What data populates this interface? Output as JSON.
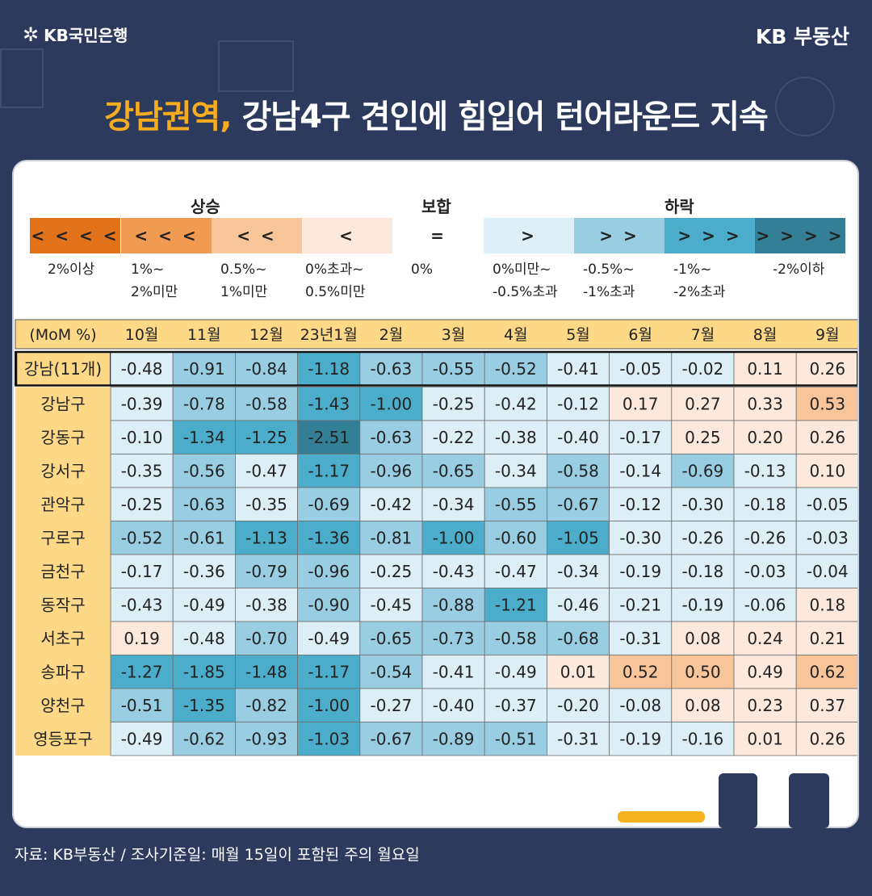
{
  "header": {
    "bank_logo": "KB국민은행",
    "brand": "KB 부동산"
  },
  "title": {
    "highlight": "강남권역,",
    "rest": " 강남4구 견인에 힘입어 턴어라운드 지속"
  },
  "legend": {
    "groups": {
      "up": "상승",
      "flat": "보합",
      "down": "하락"
    },
    "items": [
      {
        "symbol": "<<<<",
        "label": "2%이상",
        "color": "#e3731b"
      },
      {
        "symbol": "<<<",
        "label": "1%~\n2%미만",
        "color": "#f19a51"
      },
      {
        "symbol": "<<",
        "label": "0.5%~\n1%미만",
        "color": "#f8c59b"
      },
      {
        "symbol": "<",
        "label": "0%초과~\n0.5%미만",
        "color": "#fde8dc"
      },
      {
        "symbol": "=",
        "label": "0%",
        "color": "#ffffff"
      },
      {
        "symbol": ">",
        "label": "0%미만~\n-0.5%초과",
        "color": "#dceef6"
      },
      {
        "symbol": ">>",
        "label": "-0.5%~\n-1%초과",
        "color": "#98cde2"
      },
      {
        "symbol": ">>>",
        "label": "-1%~\n-2%초과",
        "color": "#4cadcb"
      },
      {
        "symbol": ">>>>",
        "label": "-2%이하",
        "color": "#337f95"
      }
    ]
  },
  "chart_data": {
    "type": "heatmap",
    "corner_label": "(MoM %)",
    "columns": [
      "10월",
      "11월",
      "12월",
      "23년1월",
      "2월",
      "3월",
      "4월",
      "5월",
      "6월",
      "7월",
      "8월",
      "9월"
    ],
    "rows": [
      {
        "name": "강남(11개)",
        "values": [
          -0.48,
          -0.91,
          -0.84,
          -1.18,
          -0.63,
          -0.55,
          -0.52,
          -0.41,
          -0.05,
          -0.02,
          0.11,
          0.26
        ]
      },
      {
        "name": "강남구",
        "values": [
          -0.39,
          -0.78,
          -0.58,
          -1.43,
          -1.0,
          -0.25,
          -0.42,
          -0.12,
          0.17,
          0.27,
          0.33,
          0.53
        ]
      },
      {
        "name": "강동구",
        "values": [
          -0.1,
          -1.34,
          -1.25,
          -2.51,
          -0.63,
          -0.22,
          -0.38,
          -0.4,
          -0.17,
          0.25,
          0.2,
          0.26
        ]
      },
      {
        "name": "강서구",
        "values": [
          -0.35,
          -0.56,
          -0.47,
          -1.17,
          -0.96,
          -0.65,
          -0.34,
          -0.58,
          -0.14,
          -0.69,
          -0.13,
          0.1
        ]
      },
      {
        "name": "관악구",
        "values": [
          -0.25,
          -0.63,
          -0.35,
          -0.69,
          -0.42,
          -0.34,
          -0.55,
          -0.67,
          -0.12,
          -0.3,
          -0.18,
          -0.05
        ]
      },
      {
        "name": "구로구",
        "values": [
          -0.52,
          -0.61,
          -1.13,
          -1.36,
          -0.81,
          -1.0,
          -0.6,
          -1.05,
          -0.3,
          -0.26,
          -0.26,
          -0.03
        ]
      },
      {
        "name": "금천구",
        "values": [
          -0.17,
          -0.36,
          -0.79,
          -0.96,
          -0.25,
          -0.43,
          -0.47,
          -0.34,
          -0.19,
          -0.18,
          -0.03,
          -0.04
        ]
      },
      {
        "name": "동작구",
        "values": [
          -0.43,
          -0.49,
          -0.38,
          -0.9,
          -0.45,
          -0.88,
          -1.21,
          -0.46,
          -0.21,
          -0.19,
          -0.06,
          0.18
        ]
      },
      {
        "name": "서초구",
        "values": [
          0.19,
          -0.48,
          -0.7,
          -0.49,
          -0.65,
          -0.73,
          -0.58,
          -0.68,
          -0.31,
          0.08,
          0.24,
          0.21
        ]
      },
      {
        "name": "송파구",
        "values": [
          -1.27,
          -1.85,
          -1.48,
          -1.17,
          -0.54,
          -0.41,
          -0.49,
          0.01,
          0.52,
          0.5,
          0.49,
          0.62
        ]
      },
      {
        "name": "양천구",
        "values": [
          -0.51,
          -1.35,
          -0.82,
          -1.0,
          -0.27,
          -0.4,
          -0.37,
          -0.2,
          -0.08,
          0.08,
          0.23,
          0.37
        ]
      },
      {
        "name": "영등포구",
        "values": [
          -0.49,
          -0.62,
          -0.93,
          -1.03,
          -0.67,
          -0.89,
          -0.51,
          -0.31,
          -0.19,
          -0.16,
          0.01,
          0.26
        ]
      }
    ],
    "header_color": "#fdd887"
  },
  "footer": {
    "source": "자료: KB부동산 / 조사기준일: 매월 15일이 포함된 주의 월요일"
  }
}
